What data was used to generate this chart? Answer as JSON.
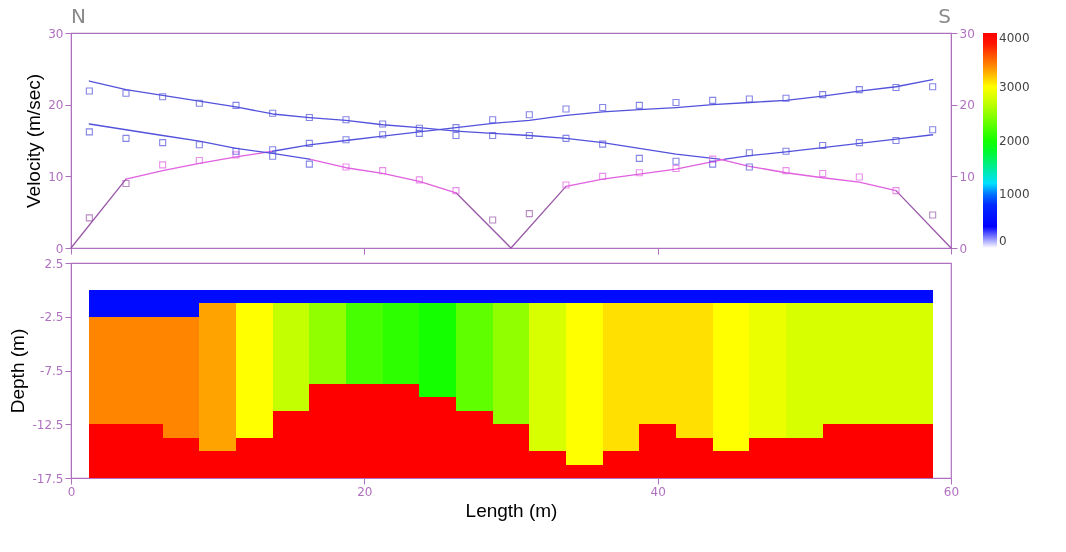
{
  "chart_data": [
    {
      "type": "line",
      "ylabel": "Velocity (m/sec)",
      "annotations": [
        "N",
        "S"
      ],
      "xlim": [
        0,
        60
      ],
      "xticks": [
        0,
        20,
        40,
        60
      ],
      "ylim": [
        0,
        30
      ],
      "yticks": [
        0,
        10,
        20,
        30
      ],
      "y2lim": [
        0,
        30
      ],
      "y2ticks": [
        0,
        10,
        20,
        30
      ],
      "tick_labels": "y",
      "series": [
        {
          "type": "line",
          "color": "#9a58a8",
          "x": [
            0,
            3.75
          ],
          "values": [
            0,
            9.6
          ]
        },
        {
          "type": "line",
          "color": "#e060e0",
          "x": [
            3.75,
            6.25,
            8.75,
            11.25,
            13.75
          ],
          "values": [
            9.6,
            10.8,
            11.8,
            12.7,
            13.5
          ]
        },
        {
          "type": "line",
          "color": "#5252dc",
          "x": [
            13.75,
            16.25,
            18.75,
            21.25,
            23.75,
            26.25,
            28.75,
            31.25,
            33.75,
            36.25,
            38.75,
            41.25,
            43.75,
            46.25,
            48.75,
            51.25,
            53.75,
            56.25,
            58.75
          ],
          "values": [
            13.5,
            14.4,
            15.0,
            15.6,
            16.2,
            16.8,
            17.4,
            17.8,
            18.5,
            19.0,
            19.3,
            19.6,
            20.0,
            20.3,
            20.6,
            21.2,
            21.9,
            22.5,
            23.5
          ]
        },
        {
          "type": "line",
          "color": "#9a58a8",
          "x": [
            56.25,
            60
          ],
          "values": [
            8.0,
            0
          ]
        },
        {
          "type": "line",
          "color": "#e060e0",
          "x": [
            44.2,
            46.25,
            48.75,
            51.25,
            53.75,
            56.25
          ],
          "values": [
            12.4,
            11.4,
            10.5,
            9.8,
            9.2,
            8.0
          ]
        },
        {
          "type": "line",
          "color": "#5252dc",
          "x": [
            1.25,
            3.75,
            6.25,
            8.75,
            11.25,
            13.75,
            16.25,
            18.75,
            21.25,
            23.75,
            26.25,
            28.75,
            31.25,
            33.75,
            36.25,
            38.75,
            41.25,
            44.2
          ],
          "values": [
            23.3,
            22.1,
            21.3,
            20.5,
            19.7,
            18.7,
            18.2,
            17.8,
            17.2,
            16.8,
            16.3,
            16.0,
            15.7,
            15.3,
            14.7,
            13.9,
            13.1,
            12.4
          ]
        },
        {
          "type": "line",
          "color": "#9a58a8",
          "x": [
            26.25,
            30,
            33.75
          ],
          "values": [
            7.7,
            0,
            8.6
          ]
        },
        {
          "type": "line",
          "color": "#e060e0",
          "x": [
            16.25,
            18.75,
            21.25,
            23.75,
            26.25
          ],
          "values": [
            12.4,
            11.2,
            10.4,
            9.3,
            7.7
          ]
        },
        {
          "type": "line",
          "color": "#e060e0",
          "x": [
            33.75,
            36.25,
            38.75,
            41.25,
            44.6
          ],
          "values": [
            8.6,
            9.6,
            10.3,
            11.0,
            12.4
          ]
        },
        {
          "type": "line",
          "color": "#5252dc",
          "x": [
            1.25,
            3.75,
            6.25,
            8.75,
            11.25,
            13.75,
            16.25
          ],
          "values": [
            17.3,
            16.5,
            15.7,
            14.9,
            13.9,
            13.2,
            12.4
          ]
        },
        {
          "type": "line",
          "color": "#5252dc",
          "x": [
            44.6,
            46.25,
            48.75,
            51.25,
            53.75,
            56.25,
            58.75
          ],
          "values": [
            12.4,
            12.9,
            13.4,
            14.0,
            14.6,
            15.2,
            15.8
          ]
        },
        {
          "type": "scatter",
          "marker": "square",
          "color": "#9a58a8",
          "x": [
            1.25,
            3.75,
            28.75,
            31.25,
            58.75
          ],
          "values": [
            4.2,
            9.0,
            3.9,
            4.8,
            4.6
          ]
        },
        {
          "type": "scatter",
          "marker": "square",
          "color": "#e060e0",
          "x": [
            6.25,
            8.75,
            11.25,
            18.75,
            21.25,
            23.75,
            26.25,
            33.75,
            36.25,
            38.75,
            41.25,
            43.75,
            48.75,
            51.25,
            53.75,
            56.25
          ],
          "values": [
            11.6,
            12.2,
            13.0,
            11.3,
            10.8,
            9.5,
            8.0,
            8.8,
            10.0,
            10.5,
            11.1,
            12.4,
            10.8,
            10.4,
            9.9,
            8.0
          ]
        },
        {
          "type": "scatter",
          "marker": "square",
          "color": "#5252dc",
          "x": [
            13.75,
            16.25,
            18.75,
            21.25,
            23.75,
            26.25,
            28.75,
            31.25,
            33.75,
            36.25,
            38.75,
            41.25,
            43.75,
            46.25,
            48.75,
            51.25,
            53.75,
            56.25,
            58.75,
            1.25,
            3.75,
            6.25,
            8.75,
            11.25,
            13.75,
            16.25,
            18.75,
            21.25,
            23.75,
            26.25,
            28.75,
            31.25,
            33.75,
            36.25,
            38.75,
            41.25,
            43.75,
            46.25,
            1.25,
            3.75,
            6.25,
            8.75,
            11.25,
            13.75,
            16.25,
            46.25,
            48.75,
            51.25,
            53.75,
            56.25,
            58.75
          ],
          "values": [
            13.7,
            14.6,
            15.1,
            15.8,
            16.0,
            16.8,
            17.9,
            18.6,
            19.4,
            19.6,
            19.9,
            20.3,
            20.6,
            20.8,
            20.9,
            21.4,
            22.1,
            22.4,
            22.5,
            21.9,
            21.6,
            21.1,
            20.2,
            19.9,
            18.8,
            18.2,
            17.9,
            17.3,
            16.7,
            15.7,
            15.7,
            15.7,
            15.3,
            14.5,
            12.5,
            12.1,
            11.7,
            11.3,
            16.2,
            15.3,
            14.7,
            14.4,
            13.5,
            12.8,
            11.7,
            13.3,
            13.5,
            14.3,
            14.7,
            15.0,
            16.5
          ]
        }
      ]
    },
    {
      "type": "heatmap",
      "xlabel": "Length (m)",
      "ylabel": "Depth (m)",
      "xlim": [
        0,
        60
      ],
      "xticks": [
        0,
        20,
        40,
        60
      ],
      "ylim": [
        -17.5,
        2.5
      ],
      "yticks": [
        2.5,
        -2.5,
        -7.5,
        -12.5,
        -17.5
      ],
      "clim": [
        0,
        4000
      ],
      "cticks": [
        0,
        1000,
        2000,
        3000,
        4000
      ],
      "x": [
        2.5,
        5,
        7.5,
        10,
        12.5,
        15,
        17.5,
        20,
        22.5,
        25,
        27.5,
        30,
        32.5,
        35,
        37.5,
        40,
        42.5,
        45,
        47.5,
        50,
        52.5,
        55,
        57.5
      ],
      "y": [
        -0.625,
        -1.875,
        -3.125,
        -4.375,
        -5.625,
        -6.875,
        -8.125,
        -9.375,
        -10.625,
        -11.875,
        -13.125,
        -14.375,
        -15.625,
        -16.875
      ],
      "cells": [
        [
          500,
          500,
          500,
          500,
          500,
          500,
          500,
          500,
          500,
          500,
          500,
          500,
          500,
          500,
          500,
          500,
          500,
          500,
          500,
          500,
          500,
          500,
          500
        ],
        [
          500,
          500,
          500,
          3300,
          3000,
          2700,
          2500,
          2200,
          2100,
          2000,
          2300,
          2500,
          2800,
          3000,
          3100,
          3100,
          3100,
          3000,
          2900,
          2800,
          2800,
          2800,
          2800
        ],
        [
          3400,
          3400,
          3400,
          3300,
          3000,
          2700,
          2500,
          2200,
          2100,
          2000,
          2300,
          2500,
          2800,
          3000,
          3100,
          3100,
          3100,
          3000,
          2900,
          2800,
          2800,
          2800,
          2800
        ],
        [
          3400,
          3400,
          3400,
          3300,
          3000,
          2700,
          2500,
          2200,
          2100,
          2000,
          2300,
          2500,
          2800,
          3000,
          3100,
          3100,
          3100,
          3000,
          2900,
          2800,
          2800,
          2800,
          2800
        ],
        [
          3400,
          3400,
          3400,
          3300,
          3000,
          2700,
          2500,
          2200,
          2100,
          2000,
          2300,
          2500,
          2800,
          3000,
          3100,
          3100,
          3100,
          3000,
          2900,
          2800,
          2800,
          2800,
          2800
        ],
        [
          3400,
          3400,
          3400,
          3300,
          3000,
          2700,
          2500,
          2200,
          2100,
          2000,
          2300,
          2500,
          2800,
          3000,
          3100,
          3100,
          3100,
          3000,
          2900,
          2800,
          2800,
          2800,
          2800
        ],
        [
          3400,
          3400,
          3400,
          3300,
          3000,
          2700,
          2500,
          2200,
          2100,
          2000,
          2300,
          2500,
          2800,
          3000,
          3100,
          3100,
          3100,
          3000,
          2900,
          2800,
          2800,
          2800,
          2800
        ],
        [
          3400,
          3400,
          3400,
          3300,
          3000,
          2700,
          4000,
          4000,
          4000,
          2000,
          2300,
          2500,
          2800,
          3000,
          3100,
          3100,
          3100,
          3000,
          2900,
          2800,
          2800,
          2800,
          2800
        ],
        [
          3400,
          3400,
          3400,
          3300,
          3000,
          2700,
          4000,
          4000,
          4000,
          4000,
          2300,
          2500,
          2800,
          3000,
          3100,
          3100,
          3100,
          3000,
          2900,
          2800,
          2800,
          2800,
          2800
        ],
        [
          3400,
          3400,
          3400,
          3300,
          3000,
          4000,
          4000,
          4000,
          4000,
          4000,
          4000,
          2500,
          2800,
          3000,
          3100,
          3100,
          3100,
          3000,
          2900,
          2800,
          2800,
          2800,
          2800
        ],
        [
          4000,
          4000,
          3400,
          3300,
          3000,
          4000,
          4000,
          4000,
          4000,
          4000,
          4000,
          4000,
          2800,
          3000,
          3100,
          4000,
          3100,
          3000,
          2900,
          2800,
          4000,
          4000,
          4000
        ],
        [
          4000,
          4000,
          4000,
          3300,
          4000,
          4000,
          4000,
          4000,
          4000,
          4000,
          4000,
          4000,
          2800,
          3000,
          3100,
          4000,
          4000,
          3000,
          4000,
          4000,
          4000,
          4000,
          4000
        ],
        [
          4000,
          4000,
          4000,
          4000,
          4000,
          4000,
          4000,
          4000,
          4000,
          4000,
          4000,
          4000,
          4000,
          3000,
          4000,
          4000,
          4000,
          4000,
          4000,
          4000,
          4000,
          4000,
          4000
        ],
        [
          4000,
          4000,
          4000,
          4000,
          4000,
          4000,
          4000,
          4000,
          4000,
          4000,
          4000,
          4000,
          4000,
          4000,
          4000,
          4000,
          4000,
          4000,
          4000,
          4000,
          4000,
          4000,
          4000
        ]
      ]
    }
  ]
}
